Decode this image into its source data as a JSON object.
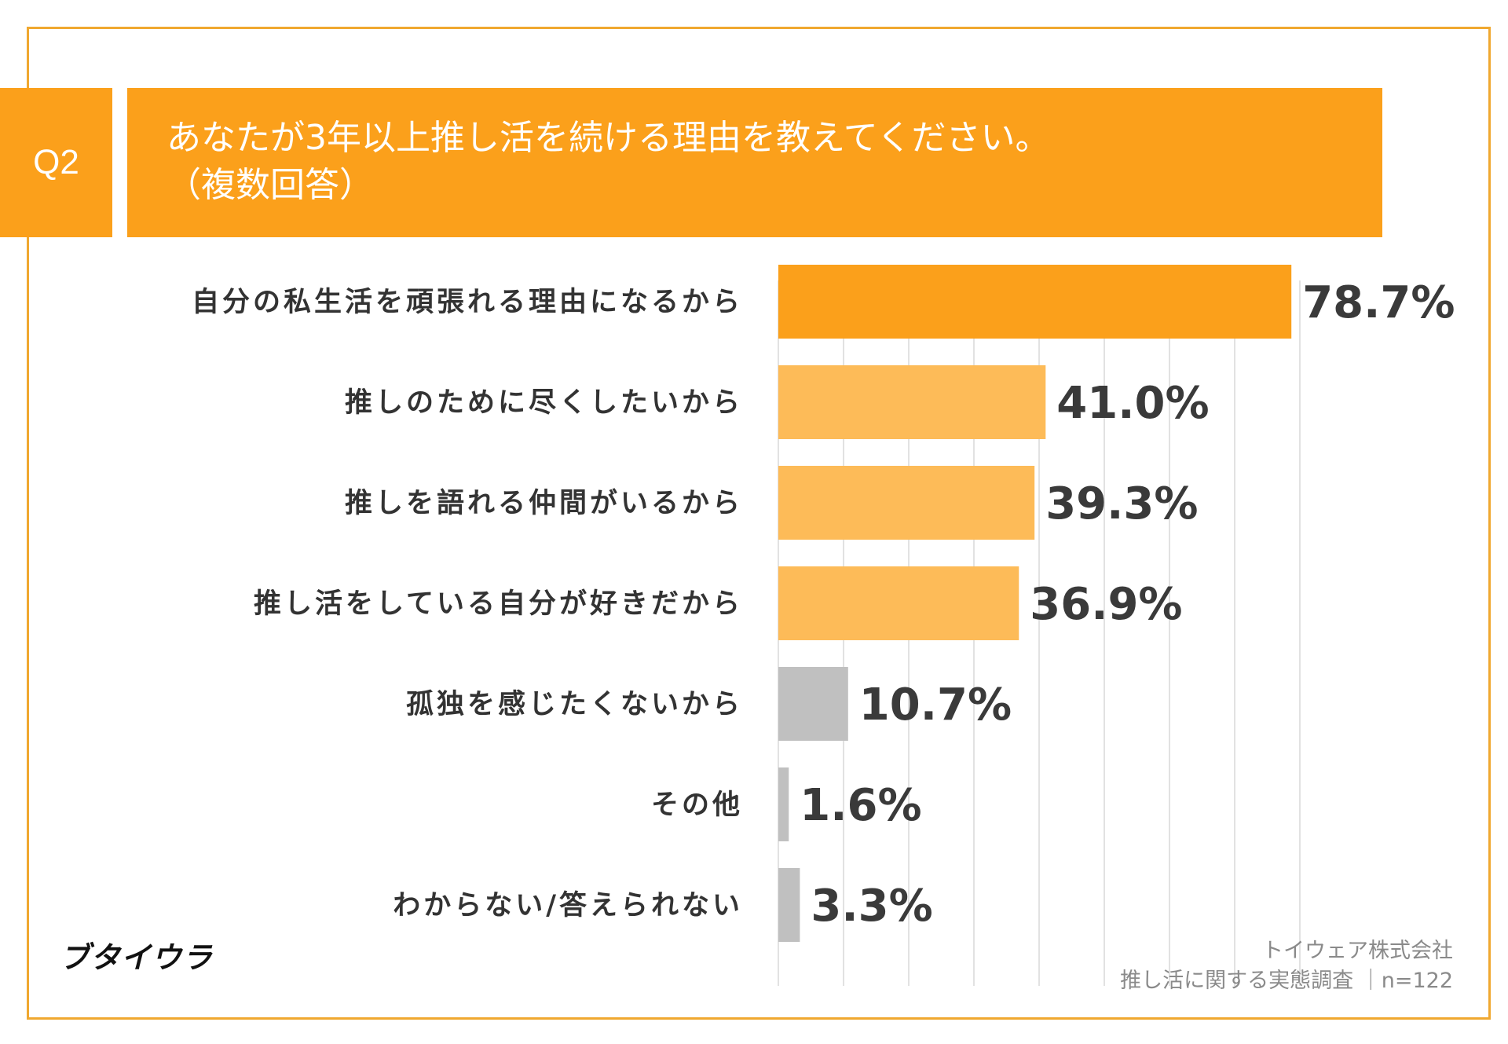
{
  "header": {
    "badge": "Q2",
    "title_line1": "あなたが3年以上推し活を続ける理由を教えてください。",
    "title_line2": "（複数回答）"
  },
  "colors": {
    "accent": "#fba01b",
    "light_orange": "#fdbb58",
    "gray": "#c0c0c0",
    "frame": "#f0a830"
  },
  "chart_data": {
    "type": "bar",
    "orientation": "horizontal",
    "title": "あなたが3年以上推し活を続ける理由を教えてください。（複数回答）",
    "categories": [
      "自分の私生活を頑張れる理由になるから",
      "推しのために尽くしたいから",
      "推しを語れる仲間がいるから",
      "推し活をしている自分が好きだから",
      "孤独を感じたくないから",
      "その他",
      "わからない/答えられない"
    ],
    "values": [
      78.7,
      41.0,
      39.3,
      36.9,
      10.7,
      1.6,
      3.3
    ],
    "value_labels": [
      "78.7%",
      "41.0%",
      "39.3%",
      "36.9%",
      "10.7%",
      "1.6%",
      "3.3%"
    ],
    "bar_colors": [
      "#fba01b",
      "#fdbb58",
      "#fdbb58",
      "#fdbb58",
      "#c0c0c0",
      "#c0c0c0",
      "#c0c0c0"
    ],
    "xlim": [
      0,
      80
    ],
    "grid": true,
    "legend": "none"
  },
  "footer": {
    "logo": "ブタイウラ",
    "source_line1": "トイウェア株式会社",
    "source_line2": "推し活に関する実態調査 ｜n=122"
  }
}
